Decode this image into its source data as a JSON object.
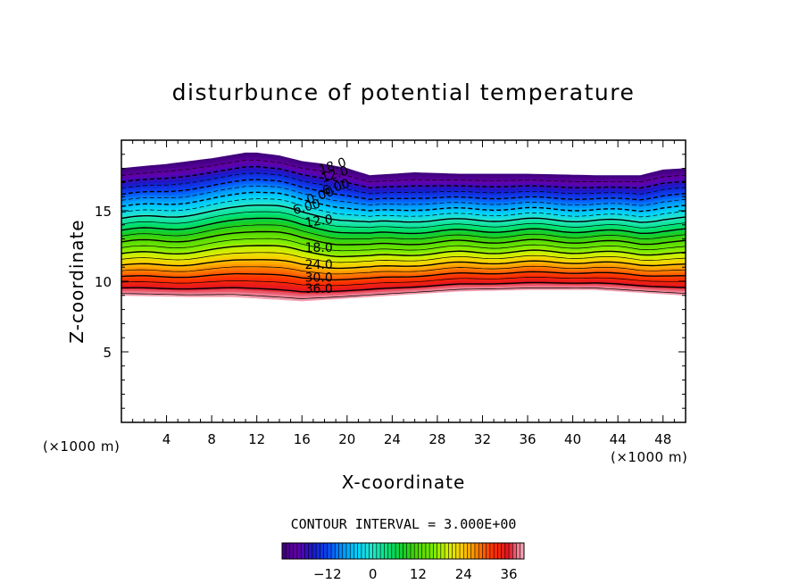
{
  "chart_data": {
    "type": "filled-contour",
    "title": "disturbunce of potential temperature",
    "xlabel": "X-coordinate",
    "ylabel": "Z-coordinate",
    "x_unit": "(×1000 m)",
    "xlim": [
      0,
      50
    ],
    "ylim": [
      0,
      20
    ],
    "x_ticks": [
      4,
      8,
      12,
      16,
      20,
      24,
      28,
      32,
      36,
      40,
      44,
      48
    ],
    "y_ticks": [
      5,
      10,
      15
    ],
    "contour_interval_label": "CONTOUR INTERVAL = 3.000E+00",
    "colorbar": {
      "min": -24,
      "max": 40,
      "ticks": [
        -12,
        0,
        12,
        24,
        36
      ]
    },
    "field": {
      "top_boundary": [
        [
          0,
          18.0
        ],
        [
          4,
          18.3
        ],
        [
          8,
          18.7
        ],
        [
          11,
          19.1
        ],
        [
          12,
          19.1
        ],
        [
          14,
          18.9
        ],
        [
          16,
          18.5
        ],
        [
          18,
          18.3
        ],
        [
          20,
          18.0
        ],
        [
          22,
          17.5
        ],
        [
          26,
          17.7
        ],
        [
          30,
          17.6
        ],
        [
          36,
          17.6
        ],
        [
          42,
          17.5
        ],
        [
          46,
          17.5
        ],
        [
          48,
          17.9
        ],
        [
          50,
          18.0
        ]
      ],
      "bottom_boundary": [
        [
          0,
          9.0
        ],
        [
          6,
          8.9
        ],
        [
          10,
          8.9
        ],
        [
          12,
          8.8
        ],
        [
          14,
          8.7
        ],
        [
          16,
          8.6
        ],
        [
          18,
          8.7
        ],
        [
          20,
          8.8
        ],
        [
          24,
          9.0
        ],
        [
          30,
          9.3
        ],
        [
          36,
          9.4
        ],
        [
          42,
          9.4
        ],
        [
          48,
          9.1
        ],
        [
          50,
          9.0
        ]
      ]
    },
    "contour_labels": [
      {
        "text": "18.0",
        "x": 18.7,
        "z": 18.2,
        "angle": -18
      },
      {
        "text": "12.0",
        "x": 18.9,
        "z": 17.6,
        "angle": -18
      },
      {
        "text": "6.00",
        "x": 19.0,
        "z": 16.7,
        "angle": -18
      },
      {
        "text": "0.00",
        "x": 17.6,
        "z": 16.1,
        "angle": -20
      },
      {
        "text": "6.00",
        "x": 16.4,
        "z": 15.3,
        "angle": -15
      },
      {
        "text": "12.0",
        "x": 17.5,
        "z": 14.3,
        "angle": -8
      },
      {
        "text": "18.0",
        "x": 17.5,
        "z": 12.4,
        "angle": 0
      },
      {
        "text": "24.0",
        "x": 17.5,
        "z": 11.2,
        "angle": 0
      },
      {
        "text": "30.0",
        "x": 17.5,
        "z": 10.3,
        "angle": 0
      },
      {
        "text": "36.0",
        "x": 17.5,
        "z": 9.5,
        "angle": 0
      }
    ]
  }
}
